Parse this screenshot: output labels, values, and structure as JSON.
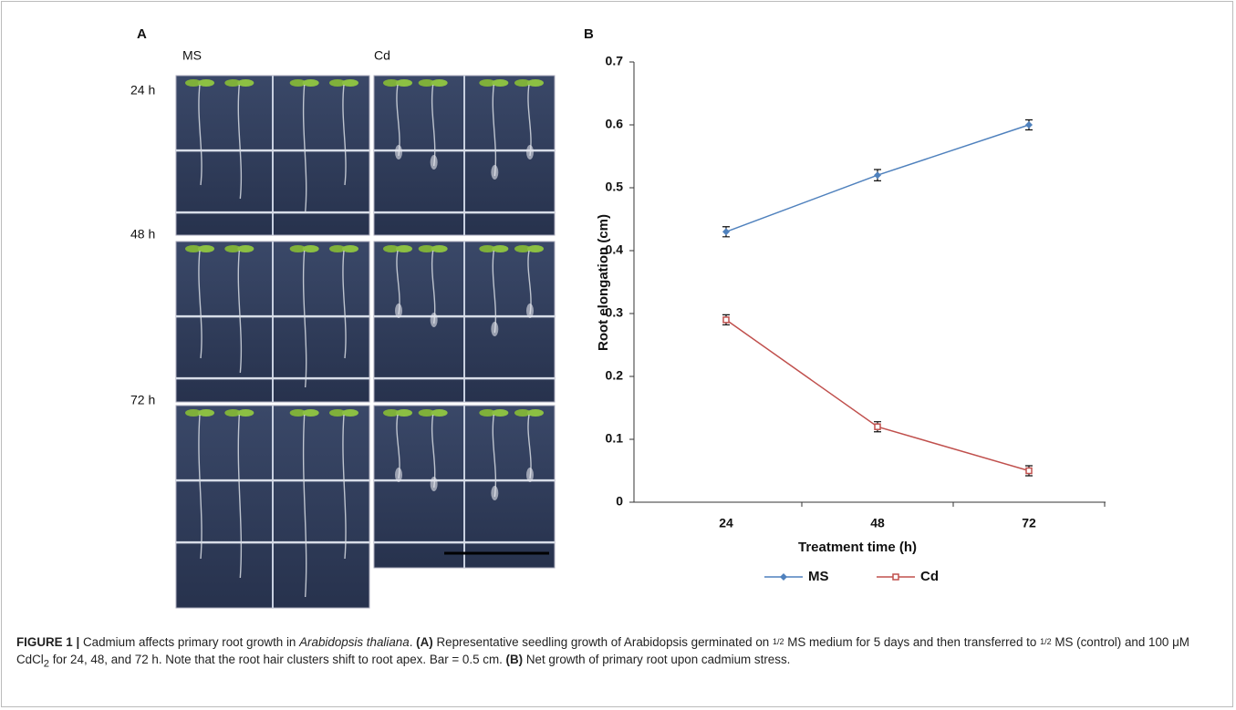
{
  "panel_a": {
    "label": "A",
    "columns": [
      "MS",
      "Cd"
    ],
    "rows": [
      "24 h",
      "48 h",
      "72 h"
    ]
  },
  "chart_data": {
    "type": "line",
    "panel_label": "B",
    "x_label": "Treatment time (h)",
    "y_label": "Root elongation (cm)",
    "categories": [
      "24",
      "48",
      "72"
    ],
    "series": [
      {
        "name": "MS",
        "color": "#4f81bd",
        "marker": "diamond",
        "values": [
          0.43,
          0.52,
          0.6
        ],
        "errors": [
          0.008,
          0.009,
          0.008
        ]
      },
      {
        "name": "Cd",
        "color": "#c0504d",
        "marker": "square",
        "values": [
          0.29,
          0.12,
          0.05
        ],
        "errors": [
          0.008,
          0.008,
          0.008
        ]
      }
    ],
    "ylim": [
      0,
      0.7
    ],
    "yticks": [
      0,
      0.1,
      0.2,
      0.3,
      0.4,
      0.5,
      0.6,
      0.7
    ],
    "grid": false,
    "legend": "bottom"
  },
  "caption": {
    "parts": [
      "FIGURE 1 |",
      " Cadmium affects primary root growth in ",
      "Arabidopsis thaliana",
      ". ",
      "(A)",
      " Representative seedling growth of Arabidopsis germinated on ",
      "1/2",
      " MS medium for 5 days and then transferred to ",
      "1/2",
      " MS (control) and 100 μM CdCl",
      "2",
      " for 24, 48, and 72 h. Note that the root hair clusters shift to root apex. Bar = 0.5 cm. ",
      "(B)",
      " Net growth of primary root upon cadmium stress."
    ]
  }
}
